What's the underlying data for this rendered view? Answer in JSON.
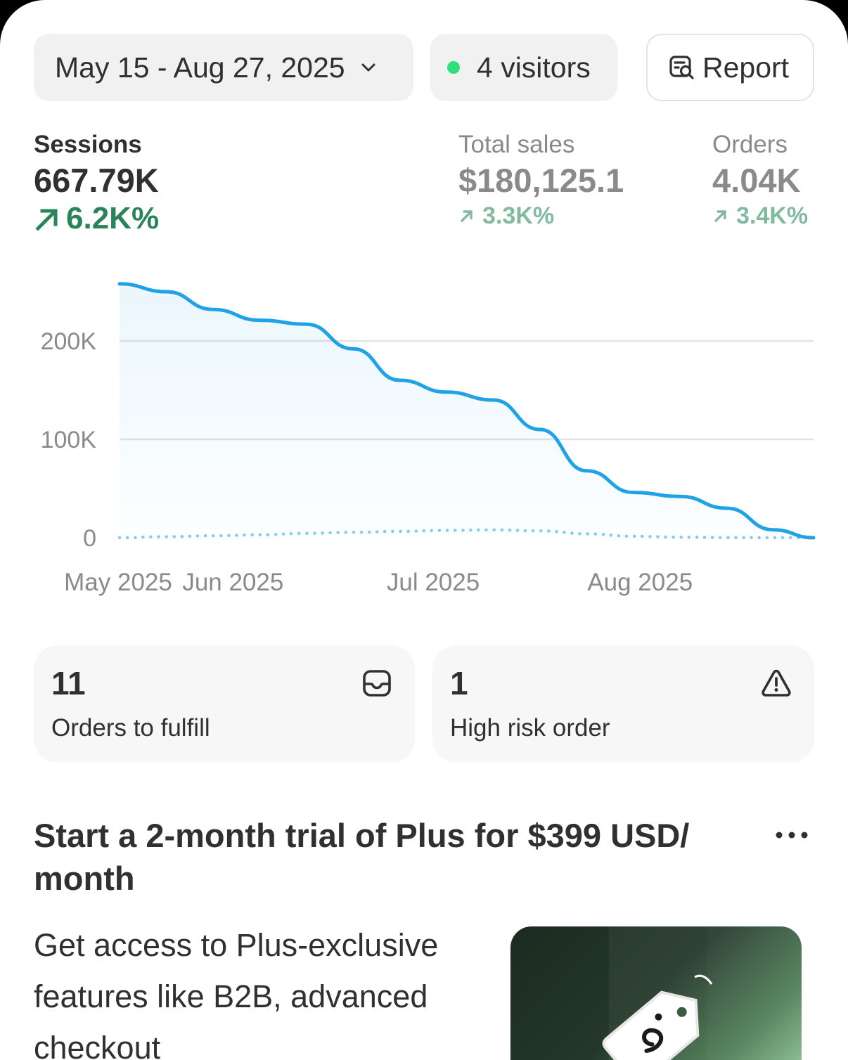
{
  "header": {
    "date_range": "May 15 - Aug 27, 2025",
    "visitors": "4 visitors",
    "visitors_dot_color": "#2ee07a",
    "report_label": "Report"
  },
  "metrics": {
    "sessions": {
      "label": "Sessions",
      "value": "667.79K",
      "delta": "6.2K%",
      "selected": true
    },
    "total_sales": {
      "label": "Total sales",
      "value": "$180,125.1",
      "delta": "3.3K%"
    },
    "orders": {
      "label": "Orders",
      "value": "4.04K",
      "delta": "3.4K%"
    }
  },
  "chart_data": {
    "type": "line",
    "x": [
      "2025-05-15",
      "2025-05-22",
      "2025-05-29",
      "2025-06-05",
      "2025-06-12",
      "2025-06-19",
      "2025-06-26",
      "2025-07-03",
      "2025-07-10",
      "2025-07-17",
      "2025-07-24",
      "2025-07-31",
      "2025-08-07",
      "2025-08-14",
      "2025-08-21",
      "2025-08-27"
    ],
    "x_tick_labels": [
      "May 2025",
      "Jun 2025",
      "Jul 2025",
      "Aug 2025"
    ],
    "y_tick_labels": [
      "0",
      "100K",
      "200K"
    ],
    "ylim": [
      0,
      260000
    ],
    "series": [
      {
        "style": "solid",
        "color": "#1fa2e6",
        "values": [
          258000,
          250000,
          232000,
          221000,
          217000,
          192000,
          160000,
          148000,
          140000,
          110000,
          68000,
          46000,
          42000,
          30000,
          8000,
          0
        ]
      },
      {
        "style": "dotted",
        "color": "#1fa2e6",
        "values": [
          0,
          1000,
          2000,
          3000,
          4500,
          5500,
          6500,
          7500,
          8000,
          7000,
          4000,
          1500,
          500,
          200,
          100,
          0
        ]
      }
    ],
    "grid": true
  },
  "cards": {
    "fulfill": {
      "count": "11",
      "label": "Orders to fulfill",
      "icon": "inbox-icon"
    },
    "risk": {
      "count": "1",
      "label": "High risk order",
      "icon": "alert-triangle-icon"
    }
  },
  "promo": {
    "title": "Start a 2-month trial of Plus for $399 USD/ month",
    "body": "Get access to Plus-exclusive features like B2B, advanced checkout",
    "image_icon": "price-tag-icon"
  }
}
